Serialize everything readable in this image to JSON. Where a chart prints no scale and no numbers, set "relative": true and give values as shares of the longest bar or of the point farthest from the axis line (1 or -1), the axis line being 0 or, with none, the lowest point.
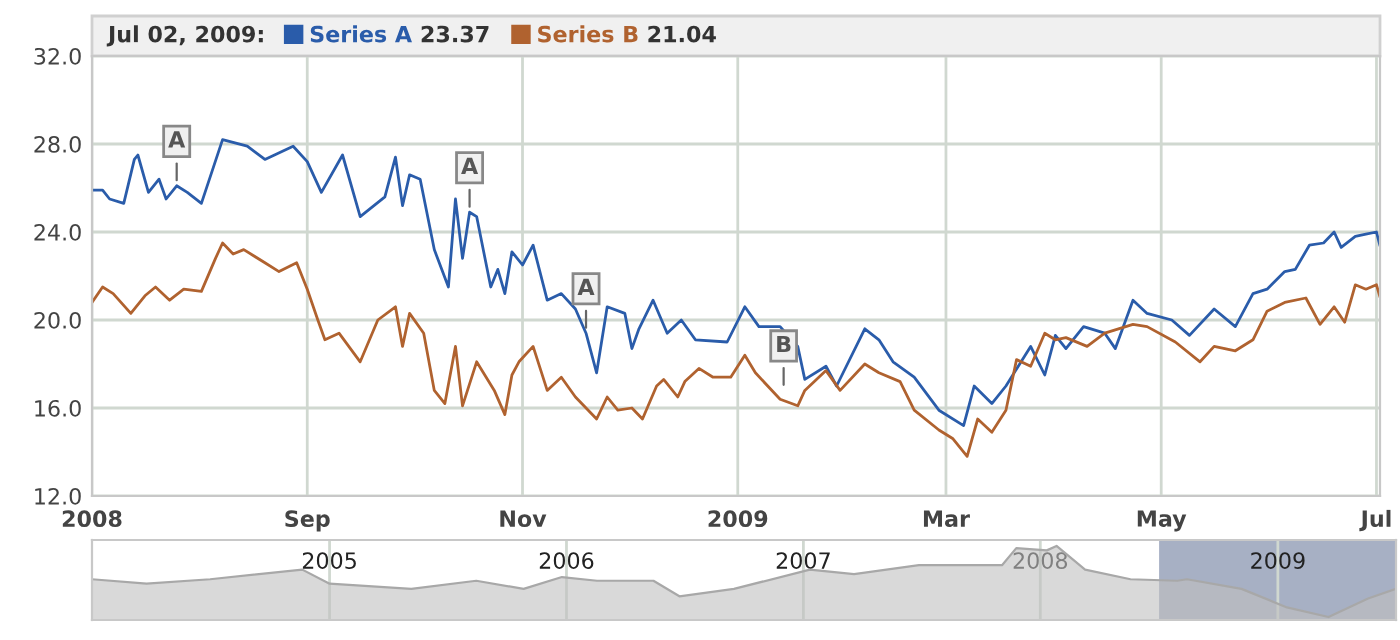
{
  "chart_data": [
    {
      "type": "line",
      "legend_title": "Jul 02, 2009:",
      "legend": "top left",
      "grid": true,
      "marker": "none",
      "line_style": "solid",
      "xlim": [
        "2008-07-02",
        "2009-07-02"
      ],
      "xticks": [
        {
          "value": "2008-07-02",
          "label": "2008"
        },
        {
          "value": "2008-09-01",
          "label": "Sep"
        },
        {
          "value": "2008-11-01",
          "label": "Nov"
        },
        {
          "value": "2009-01-01",
          "label": "2009"
        },
        {
          "value": "2009-03-01",
          "label": "Mar"
        },
        {
          "value": "2009-05-01",
          "label": "May"
        },
        {
          "value": "2009-07-01",
          "label": "Jul"
        }
      ],
      "ylim": [
        12,
        32
      ],
      "yticks": [
        {
          "value": 12,
          "label": "12.0"
        },
        {
          "value": 16,
          "label": "16.0"
        },
        {
          "value": 20,
          "label": "20.0"
        },
        {
          "value": 24,
          "label": "24.0"
        },
        {
          "value": 28,
          "label": "28.0"
        },
        {
          "value": 32,
          "label": "32.0"
        }
      ],
      "series": [
        {
          "name": "Series A",
          "color": "#2a5caa",
          "x": [
            "2008-07-02",
            "2008-07-05",
            "2008-07-07",
            "2008-07-11",
            "2008-07-14",
            "2008-07-15",
            "2008-07-18",
            "2008-07-21",
            "2008-07-23",
            "2008-07-26",
            "2008-07-29",
            "2008-08-02",
            "2008-08-08",
            "2008-08-15",
            "2008-08-20",
            "2008-08-28",
            "2008-09-01",
            "2008-09-05",
            "2008-09-11",
            "2008-09-16",
            "2008-09-23",
            "2008-09-26",
            "2008-09-28",
            "2008-09-30",
            "2008-10-03",
            "2008-10-07",
            "2008-10-11",
            "2008-10-13",
            "2008-10-15",
            "2008-10-17",
            "2008-10-19",
            "2008-10-23",
            "2008-10-25",
            "2008-10-27",
            "2008-10-29",
            "2008-11-01",
            "2008-11-04",
            "2008-11-08",
            "2008-11-12",
            "2008-11-16",
            "2008-11-19",
            "2008-11-22",
            "2008-11-25",
            "2008-11-30",
            "2008-12-02",
            "2008-12-04",
            "2008-12-08",
            "2008-12-12",
            "2008-12-16",
            "2008-12-20",
            "2008-12-29",
            "2009-01-03",
            "2009-01-07",
            "2009-01-13",
            "2009-01-18",
            "2009-01-20",
            "2009-01-26",
            "2009-01-29",
            "2009-02-06",
            "2009-02-10",
            "2009-02-14",
            "2009-02-20",
            "2009-02-27",
            "2009-03-06",
            "2009-03-09",
            "2009-03-14",
            "2009-03-18",
            "2009-03-25",
            "2009-03-29",
            "2009-04-01",
            "2009-04-04",
            "2009-04-09",
            "2009-04-15",
            "2009-04-18",
            "2009-04-23",
            "2009-04-27",
            "2009-05-04",
            "2009-05-09",
            "2009-05-16",
            "2009-05-22",
            "2009-05-27",
            "2009-05-31",
            "2009-06-05",
            "2009-06-08",
            "2009-06-12",
            "2009-06-16",
            "2009-06-19",
            "2009-06-21",
            "2009-06-25",
            "2009-06-28",
            "2009-07-01",
            "2009-07-02"
          ],
          "values": [
            25.9,
            25.9,
            25.5,
            25.3,
            27.3,
            27.5,
            25.8,
            26.4,
            25.5,
            26.1,
            25.8,
            25.3,
            28.2,
            27.9,
            27.3,
            27.9,
            27.2,
            25.8,
            27.5,
            24.7,
            25.6,
            27.4,
            25.2,
            26.6,
            26.4,
            23.2,
            21.5,
            25.5,
            22.8,
            24.9,
            24.7,
            21.5,
            22.3,
            21.2,
            23.1,
            22.5,
            23.4,
            20.9,
            21.2,
            20.5,
            19.4,
            17.6,
            20.6,
            20.3,
            18.7,
            19.6,
            20.9,
            19.4,
            20.0,
            19.1,
            19.0,
            20.6,
            19.7,
            19.7,
            18.8,
            17.3,
            17.9,
            17.0,
            19.6,
            19.1,
            18.1,
            17.4,
            15.9,
            15.2,
            17.0,
            16.2,
            17.0,
            18.8,
            17.5,
            19.3,
            18.7,
            19.7,
            19.4,
            18.7,
            20.9,
            20.3,
            20.0,
            19.3,
            20.5,
            19.7,
            21.2,
            21.4,
            22.2,
            22.3,
            23.4,
            23.5,
            24.0,
            23.3,
            23.8,
            23.9,
            24.0,
            23.37
          ]
        },
        {
          "name": "Series B",
          "color": "#b0622f",
          "x": [
            "2008-07-02",
            "2008-07-05",
            "2008-07-08",
            "2008-07-13",
            "2008-07-17",
            "2008-07-20",
            "2008-07-24",
            "2008-07-28",
            "2008-08-02",
            "2008-08-06",
            "2008-08-08",
            "2008-08-11",
            "2008-08-14",
            "2008-08-20",
            "2008-08-24",
            "2008-08-29",
            "2008-09-01",
            "2008-09-04",
            "2008-09-06",
            "2008-09-10",
            "2008-09-16",
            "2008-09-21",
            "2008-09-26",
            "2008-09-28",
            "2008-09-30",
            "2008-10-04",
            "2008-10-07",
            "2008-10-10",
            "2008-10-13",
            "2008-10-15",
            "2008-10-19",
            "2008-10-24",
            "2008-10-27",
            "2008-10-29",
            "2008-10-31",
            "2008-11-04",
            "2008-11-08",
            "2008-11-12",
            "2008-11-16",
            "2008-11-22",
            "2008-11-25",
            "2008-11-28",
            "2008-12-02",
            "2008-12-05",
            "2008-12-09",
            "2008-12-11",
            "2008-12-15",
            "2008-12-17",
            "2008-12-21",
            "2008-12-25",
            "2008-12-30",
            "2009-01-03",
            "2009-01-06",
            "2009-01-13",
            "2009-01-18",
            "2009-01-20",
            "2009-01-26",
            "2009-01-30",
            "2009-02-06",
            "2009-02-10",
            "2009-02-16",
            "2009-02-20",
            "2009-02-27",
            "2009-03-03",
            "2009-03-07",
            "2009-03-10",
            "2009-03-14",
            "2009-03-18",
            "2009-03-21",
            "2009-03-25",
            "2009-03-29",
            "2009-04-01",
            "2009-04-04",
            "2009-04-10",
            "2009-04-15",
            "2009-04-23",
            "2009-04-27",
            "2009-05-05",
            "2009-05-12",
            "2009-05-16",
            "2009-05-22",
            "2009-05-27",
            "2009-05-31",
            "2009-06-05",
            "2009-06-11",
            "2009-06-15",
            "2009-06-19",
            "2009-06-22",
            "2009-06-25",
            "2009-06-28",
            "2009-07-01",
            "2009-07-02"
          ],
          "values": [
            20.8,
            21.5,
            21.2,
            20.3,
            21.1,
            21.5,
            20.9,
            21.4,
            21.3,
            22.8,
            23.5,
            23.0,
            23.2,
            22.6,
            22.2,
            22.6,
            21.4,
            20.0,
            19.1,
            19.4,
            18.1,
            20.0,
            20.6,
            18.8,
            20.3,
            19.4,
            16.8,
            16.2,
            18.8,
            16.1,
            18.1,
            16.8,
            15.7,
            17.5,
            18.1,
            18.8,
            16.8,
            17.4,
            16.5,
            15.5,
            16.5,
            15.9,
            16.0,
            15.5,
            17.0,
            17.3,
            16.5,
            17.2,
            17.8,
            17.4,
            17.4,
            18.4,
            17.6,
            16.4,
            16.1,
            16.8,
            17.7,
            16.8,
            18.0,
            17.6,
            17.2,
            15.9,
            15.0,
            14.6,
            13.8,
            15.5,
            14.9,
            15.9,
            18.2,
            17.9,
            19.4,
            19.1,
            19.2,
            18.8,
            19.4,
            19.8,
            19.7,
            19.0,
            18.1,
            18.8,
            18.6,
            19.1,
            20.4,
            20.8,
            21.0,
            19.8,
            20.6,
            19.9,
            21.6,
            21.4,
            21.6,
            21.04
          ]
        }
      ],
      "annotations": [
        "23.37",
        "21.04",
        {
          "text": "A",
          "x": "2008-07-26",
          "y": 26.1
        },
        {
          "text": "A",
          "x": "2008-10-17",
          "y": 24.9
        },
        {
          "text": "A",
          "x": "2008-11-19",
          "y": 19.4
        },
        {
          "text": "B",
          "x": "2009-01-14",
          "y": 16.8
        }
      ]
    },
    {
      "type": "area",
      "relative": true,
      "color": "#c0c0c0",
      "grid": "x",
      "tick_labels": "x",
      "xlim": [
        "2004-01-01",
        "2009-07-02"
      ],
      "xticks": [
        {
          "value": "2005-01-01",
          "label": "2005"
        },
        {
          "value": "2006-01-01",
          "label": "2006"
        },
        {
          "value": "2007-01-01",
          "label": "2007"
        },
        {
          "value": "2008-01-01",
          "label": "2008"
        },
        {
          "value": "2009-01-01",
          "label": "2009"
        }
      ],
      "x": [
        "2004-01-01",
        "2004-03-25",
        "2004-07-01",
        "2004-11-20",
        "2005-01-01",
        "2005-05-07",
        "2005-08-15",
        "2005-10-27",
        "2005-12-25",
        "2006-02-17",
        "2006-05-15",
        "2006-06-24",
        "2006-09-16",
        "2007-01-11",
        "2007-03-20",
        "2007-06-28",
        "2007-11-03",
        "2007-11-25",
        "2008-01-11",
        "2008-01-26",
        "2008-03-10",
        "2008-05-19",
        "2008-07-30",
        "2008-08-14",
        "2008-11-06",
        "2009-01-15",
        "2009-03-20",
        "2009-05-20",
        "2009-07-02"
      ],
      "values": [
        0.55,
        0.49,
        0.55,
        0.68,
        0.49,
        0.42,
        0.53,
        0.42,
        0.58,
        0.53,
        0.53,
        0.32,
        0.42,
        0.68,
        0.62,
        0.74,
        0.74,
        0.97,
        0.94,
        1.0,
        0.68,
        0.55,
        0.53,
        0.55,
        0.42,
        0.17,
        0.04,
        0.29,
        0.42
      ],
      "bands": [
        {
          "axis": "x",
          "from": "2008-07-02",
          "to": "2009-07-02",
          "color": "#5f6f94"
        }
      ]
    }
  ]
}
